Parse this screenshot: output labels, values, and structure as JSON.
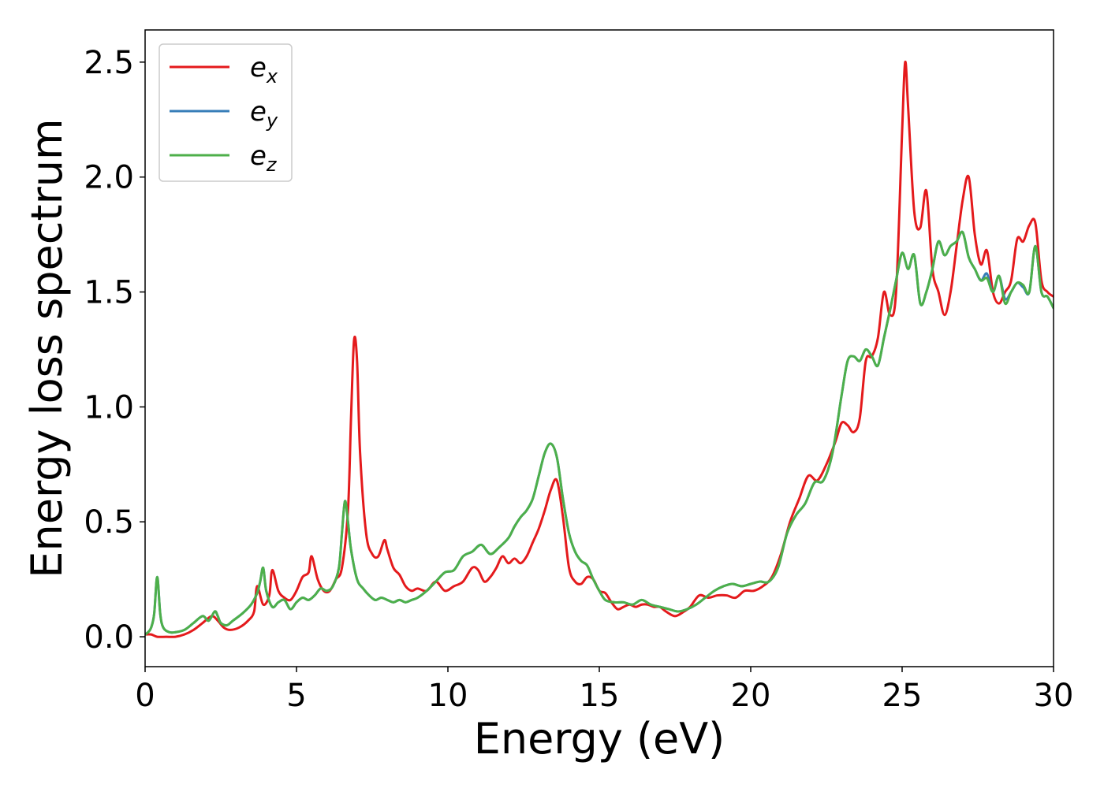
{
  "chart_data": {
    "type": "line",
    "xlabel": "Energy (eV)",
    "ylabel": "Energy loss spectrum",
    "xlim": [
      0,
      30
    ],
    "ylim": [
      -0.13,
      2.64
    ],
    "xticks": [
      0,
      5,
      10,
      15,
      20,
      25,
      30
    ],
    "xtick_labels": [
      "0",
      "5",
      "10",
      "15",
      "20",
      "25",
      "30"
    ],
    "yticks": [
      0.0,
      0.5,
      1.0,
      1.5,
      2.0,
      2.5
    ],
    "ytick_labels": [
      "0.0",
      "0.5",
      "1.0",
      "1.5",
      "2.0",
      "2.5"
    ],
    "grid": false,
    "legend_position": "top-left",
    "series": [
      {
        "name": "e_x",
        "label_base": "e",
        "label_sub": "x",
        "color": "#e41a1c",
        "x": [
          0,
          0.2,
          0.4,
          0.7,
          1.0,
          1.3,
          1.6,
          1.9,
          2.2,
          2.4,
          2.6,
          2.8,
          3.1,
          3.4,
          3.6,
          3.7,
          3.9,
          4.1,
          4.2,
          4.4,
          4.6,
          4.8,
          5.0,
          5.2,
          5.4,
          5.5,
          5.7,
          5.9,
          6.1,
          6.3,
          6.5,
          6.7,
          6.8,
          6.9,
          7.0,
          7.1,
          7.3,
          7.5,
          7.7,
          7.9,
          8.0,
          8.2,
          8.4,
          8.6,
          8.8,
          9.0,
          9.3,
          9.6,
          9.9,
          10.2,
          10.5,
          10.8,
          11.0,
          11.2,
          11.4,
          11.6,
          11.8,
          12.0,
          12.2,
          12.4,
          12.6,
          12.8,
          13.0,
          13.2,
          13.4,
          13.6,
          13.8,
          14.0,
          14.2,
          14.4,
          14.6,
          14.8,
          15.0,
          15.2,
          15.4,
          15.6,
          15.8,
          16.0,
          16.2,
          16.4,
          16.6,
          16.8,
          17.0,
          17.2,
          17.5,
          17.8,
          18.0,
          18.3,
          18.6,
          18.9,
          19.2,
          19.5,
          19.8,
          20.1,
          20.4,
          20.7,
          21.0,
          21.3,
          21.6,
          21.9,
          22.2,
          22.5,
          22.8,
          23.0,
          23.2,
          23.4,
          23.6,
          23.8,
          24.0,
          24.2,
          24.4,
          24.6,
          24.8,
          25.0,
          25.1,
          25.2,
          25.4,
          25.6,
          25.8,
          26.0,
          26.2,
          26.4,
          26.6,
          26.8,
          27.0,
          27.2,
          27.4,
          27.6,
          27.8,
          28.0,
          28.2,
          28.4,
          28.6,
          28.8,
          29.0,
          29.2,
          29.4,
          29.6,
          29.8,
          30.0
        ],
        "values": [
          0.01,
          0.01,
          0.0,
          0.0,
          0.0,
          0.01,
          0.03,
          0.06,
          0.09,
          0.07,
          0.04,
          0.03,
          0.04,
          0.07,
          0.11,
          0.22,
          0.14,
          0.18,
          0.29,
          0.2,
          0.17,
          0.16,
          0.2,
          0.26,
          0.28,
          0.35,
          0.25,
          0.2,
          0.2,
          0.25,
          0.3,
          0.55,
          0.95,
          1.29,
          1.2,
          0.8,
          0.45,
          0.36,
          0.35,
          0.42,
          0.38,
          0.3,
          0.27,
          0.22,
          0.2,
          0.21,
          0.2,
          0.24,
          0.2,
          0.22,
          0.24,
          0.3,
          0.29,
          0.24,
          0.26,
          0.3,
          0.35,
          0.32,
          0.34,
          0.32,
          0.35,
          0.41,
          0.47,
          0.55,
          0.64,
          0.68,
          0.52,
          0.3,
          0.24,
          0.23,
          0.26,
          0.25,
          0.2,
          0.19,
          0.15,
          0.12,
          0.13,
          0.14,
          0.13,
          0.14,
          0.14,
          0.13,
          0.13,
          0.11,
          0.09,
          0.11,
          0.13,
          0.18,
          0.17,
          0.18,
          0.18,
          0.17,
          0.2,
          0.2,
          0.22,
          0.26,
          0.36,
          0.5,
          0.6,
          0.7,
          0.68,
          0.75,
          0.85,
          0.93,
          0.92,
          0.89,
          0.95,
          1.2,
          1.22,
          1.3,
          1.5,
          1.4,
          1.5,
          2.2,
          2.5,
          2.3,
          1.85,
          1.78,
          1.94,
          1.6,
          1.5,
          1.4,
          1.5,
          1.7,
          1.9,
          2.0,
          1.75,
          1.62,
          1.68,
          1.5,
          1.45,
          1.5,
          1.55,
          1.73,
          1.72,
          1.79,
          1.8,
          1.55,
          1.5,
          1.48
        ]
      },
      {
        "name": "e_y",
        "label_base": "e",
        "label_sub": "y",
        "color": "#377eb8",
        "x": [
          0,
          0.1,
          0.2,
          0.3,
          0.4,
          0.5,
          0.6,
          0.8,
          1.0,
          1.3,
          1.6,
          1.9,
          2.1,
          2.3,
          2.4,
          2.5,
          2.7,
          2.9,
          3.2,
          3.5,
          3.7,
          3.8,
          3.9,
          4.0,
          4.2,
          4.4,
          4.6,
          4.8,
          5.0,
          5.2,
          5.4,
          5.6,
          5.8,
          6.0,
          6.2,
          6.4,
          6.5,
          6.6,
          6.7,
          6.8,
          7.0,
          7.2,
          7.4,
          7.6,
          7.8,
          8.0,
          8.2,
          8.4,
          8.6,
          8.8,
          9.0,
          9.3,
          9.6,
          9.9,
          10.2,
          10.5,
          10.8,
          11.1,
          11.4,
          11.7,
          12.0,
          12.2,
          12.4,
          12.6,
          12.8,
          13.0,
          13.2,
          13.4,
          13.6,
          13.8,
          14.0,
          14.2,
          14.4,
          14.6,
          14.8,
          15.0,
          15.2,
          15.5,
          15.8,
          16.1,
          16.4,
          16.7,
          17.0,
          17.3,
          17.6,
          17.9,
          18.2,
          18.5,
          18.8,
          19.1,
          19.4,
          19.7,
          20.0,
          20.3,
          20.6,
          20.9,
          21.2,
          21.5,
          21.8,
          22.1,
          22.4,
          22.7,
          23.0,
          23.2,
          23.4,
          23.6,
          23.8,
          24.0,
          24.2,
          24.4,
          24.6,
          24.8,
          25.0,
          25.2,
          25.4,
          25.6,
          25.8,
          26.0,
          26.2,
          26.4,
          26.6,
          26.8,
          27.0,
          27.2,
          27.4,
          27.6,
          27.8,
          28.0,
          28.2,
          28.4,
          28.6,
          28.8,
          29.0,
          29.2,
          29.4,
          29.6,
          29.8,
          30.0
        ],
        "values": [
          0.01,
          0.02,
          0.04,
          0.1,
          0.26,
          0.1,
          0.04,
          0.02,
          0.02,
          0.03,
          0.06,
          0.09,
          0.07,
          0.11,
          0.09,
          0.06,
          0.05,
          0.07,
          0.1,
          0.14,
          0.19,
          0.24,
          0.3,
          0.2,
          0.13,
          0.15,
          0.16,
          0.12,
          0.15,
          0.17,
          0.16,
          0.18,
          0.21,
          0.2,
          0.22,
          0.3,
          0.45,
          0.59,
          0.5,
          0.38,
          0.25,
          0.21,
          0.18,
          0.16,
          0.17,
          0.16,
          0.15,
          0.16,
          0.15,
          0.16,
          0.17,
          0.2,
          0.24,
          0.28,
          0.29,
          0.35,
          0.37,
          0.4,
          0.36,
          0.39,
          0.43,
          0.48,
          0.52,
          0.55,
          0.6,
          0.7,
          0.8,
          0.84,
          0.78,
          0.6,
          0.45,
          0.37,
          0.33,
          0.31,
          0.25,
          0.2,
          0.16,
          0.15,
          0.15,
          0.14,
          0.16,
          0.14,
          0.13,
          0.12,
          0.11,
          0.12,
          0.14,
          0.17,
          0.2,
          0.22,
          0.23,
          0.22,
          0.23,
          0.24,
          0.24,
          0.3,
          0.45,
          0.53,
          0.58,
          0.67,
          0.68,
          0.8,
          1.05,
          1.2,
          1.22,
          1.2,
          1.25,
          1.22,
          1.18,
          1.3,
          1.42,
          1.55,
          1.67,
          1.6,
          1.66,
          1.45,
          1.5,
          1.6,
          1.72,
          1.66,
          1.7,
          1.72,
          1.76,
          1.65,
          1.6,
          1.55,
          1.58,
          1.5,
          1.57,
          1.47,
          1.5,
          1.54,
          1.52,
          1.5,
          1.7,
          1.5,
          1.48,
          1.43
        ]
      },
      {
        "name": "e_z",
        "label_base": "e",
        "label_sub": "z",
        "color": "#4daf4a",
        "x": [
          0,
          0.1,
          0.2,
          0.3,
          0.4,
          0.5,
          0.6,
          0.8,
          1.0,
          1.3,
          1.6,
          1.9,
          2.1,
          2.3,
          2.4,
          2.5,
          2.7,
          2.9,
          3.2,
          3.5,
          3.7,
          3.8,
          3.9,
          4.0,
          4.2,
          4.4,
          4.6,
          4.8,
          5.0,
          5.2,
          5.4,
          5.6,
          5.8,
          6.0,
          6.2,
          6.4,
          6.5,
          6.6,
          6.7,
          6.8,
          7.0,
          7.2,
          7.4,
          7.6,
          7.8,
          8.0,
          8.2,
          8.4,
          8.6,
          8.8,
          9.0,
          9.3,
          9.6,
          9.9,
          10.2,
          10.5,
          10.8,
          11.1,
          11.4,
          11.7,
          12.0,
          12.2,
          12.4,
          12.6,
          12.8,
          13.0,
          13.2,
          13.4,
          13.6,
          13.8,
          14.0,
          14.2,
          14.4,
          14.6,
          14.8,
          15.0,
          15.2,
          15.5,
          15.8,
          16.1,
          16.4,
          16.7,
          17.0,
          17.3,
          17.6,
          17.9,
          18.2,
          18.5,
          18.8,
          19.1,
          19.4,
          19.7,
          20.0,
          20.3,
          20.6,
          20.9,
          21.2,
          21.5,
          21.8,
          22.1,
          22.4,
          22.7,
          23.0,
          23.2,
          23.4,
          23.6,
          23.8,
          24.0,
          24.2,
          24.4,
          24.6,
          24.8,
          25.0,
          25.2,
          25.4,
          25.6,
          25.8,
          26.0,
          26.2,
          26.4,
          26.6,
          26.8,
          27.0,
          27.2,
          27.4,
          27.6,
          27.8,
          28.0,
          28.2,
          28.4,
          28.6,
          28.8,
          29.0,
          29.2,
          29.4,
          29.6,
          29.8,
          30.0
        ],
        "values": [
          0.01,
          0.02,
          0.04,
          0.1,
          0.26,
          0.1,
          0.04,
          0.02,
          0.02,
          0.03,
          0.06,
          0.09,
          0.07,
          0.11,
          0.09,
          0.06,
          0.05,
          0.07,
          0.1,
          0.14,
          0.19,
          0.24,
          0.3,
          0.2,
          0.13,
          0.15,
          0.16,
          0.12,
          0.15,
          0.17,
          0.16,
          0.18,
          0.21,
          0.2,
          0.22,
          0.3,
          0.45,
          0.59,
          0.5,
          0.38,
          0.25,
          0.21,
          0.18,
          0.16,
          0.17,
          0.16,
          0.15,
          0.16,
          0.15,
          0.16,
          0.17,
          0.2,
          0.24,
          0.28,
          0.29,
          0.35,
          0.37,
          0.4,
          0.36,
          0.39,
          0.43,
          0.48,
          0.52,
          0.55,
          0.6,
          0.7,
          0.8,
          0.84,
          0.78,
          0.6,
          0.45,
          0.37,
          0.33,
          0.31,
          0.25,
          0.2,
          0.16,
          0.15,
          0.15,
          0.14,
          0.16,
          0.14,
          0.13,
          0.12,
          0.11,
          0.12,
          0.14,
          0.17,
          0.2,
          0.22,
          0.23,
          0.22,
          0.23,
          0.24,
          0.24,
          0.3,
          0.45,
          0.53,
          0.58,
          0.67,
          0.68,
          0.8,
          1.05,
          1.2,
          1.22,
          1.2,
          1.25,
          1.22,
          1.18,
          1.3,
          1.42,
          1.55,
          1.67,
          1.6,
          1.66,
          1.45,
          1.5,
          1.6,
          1.72,
          1.66,
          1.7,
          1.72,
          1.76,
          1.65,
          1.6,
          1.55,
          1.56,
          1.5,
          1.57,
          1.45,
          1.5,
          1.54,
          1.53,
          1.5,
          1.7,
          1.5,
          1.48,
          1.43
        ]
      }
    ]
  }
}
